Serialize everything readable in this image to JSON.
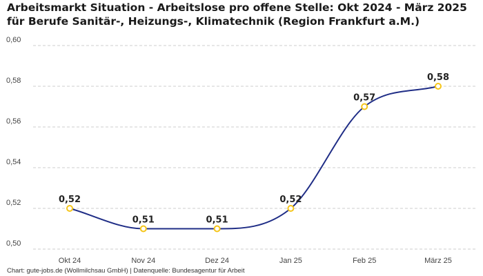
{
  "chart_data": {
    "type": "line",
    "title": "Arbeitsmarkt Situation - Arbeitslose pro offene Stelle: Okt 2024 - März 2025 für Berufe Sanitär-, Heizungs-, Klimatechnik (Region Frankfurt a.M.)",
    "categories": [
      "Okt 24",
      "Nov 24",
      "Dez 24",
      "Jan 25",
      "Feb 25",
      "März 25"
    ],
    "values": [
      0.52,
      0.51,
      0.51,
      0.52,
      0.57,
      0.58
    ],
    "data_labels": [
      "0,52",
      "0,51",
      "0,51",
      "0,52",
      "0,57",
      "0,58"
    ],
    "ylim": [
      0.5,
      0.6
    ],
    "yticks": [
      0.5,
      0.52,
      0.54,
      0.56,
      0.58,
      0.6
    ],
    "ytick_labels": [
      "0,50",
      "0,52",
      "0,54",
      "0,56",
      "0,58",
      "0,60"
    ],
    "xlabel": "",
    "ylabel": "",
    "grid": true,
    "line_color": "#1f2d86",
    "marker_color": "#f5c518",
    "grid_color": "#cccccc"
  },
  "footer": "Chart: gute-jobs.de (Wollmilchsau GmbH) | Datenquelle: Bundesagentur für Arbeit"
}
